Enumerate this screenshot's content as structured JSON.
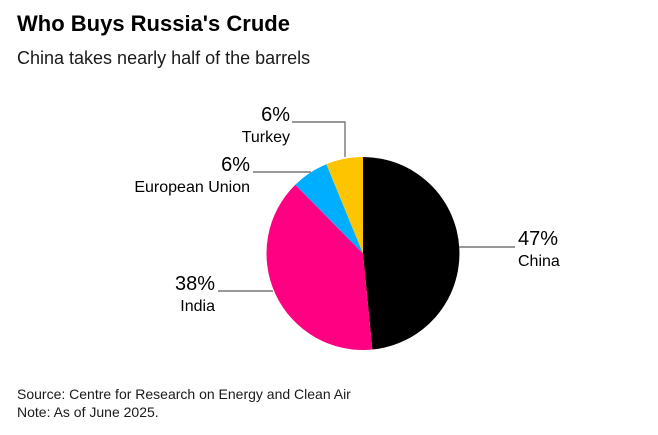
{
  "header": {
    "title": "Who Buys Russia's Crude",
    "subtitle": "China takes nearly half of the barrels"
  },
  "footer": {
    "source": "Source: Centre for Research on Energy and Clean Air",
    "note": "Note: As of June 2025."
  },
  "chart_data": {
    "type": "pie",
    "title": "Who Buys Russia's Crude",
    "subtitle": "China takes nearly half of the barrels",
    "unit": "%",
    "start_angle_deg": 0,
    "direction": "clockwise",
    "slices": [
      {
        "label": "China",
        "value": 47,
        "pct_label": "47%",
        "color": "#000000"
      },
      {
        "label": "India",
        "value": 38,
        "pct_label": "38%",
        "color": "#ff0082"
      },
      {
        "label": "European Union",
        "value": 6,
        "pct_label": "6%",
        "color": "#00aeff"
      },
      {
        "label": "Turkey",
        "value": 6,
        "pct_label": "6%",
        "color": "#ffc400"
      }
    ],
    "leader_line_color": "#767676",
    "background_color": "#ffffff",
    "legend": "none",
    "label_style": "external-leader-lines"
  }
}
